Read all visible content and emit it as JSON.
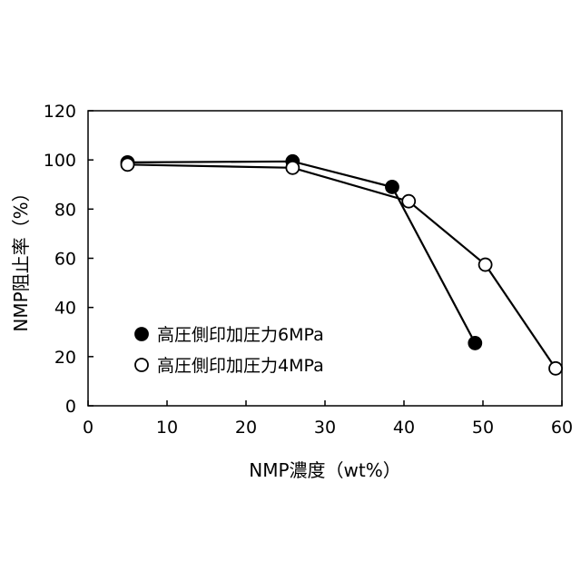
{
  "chart_data": {
    "type": "line",
    "xlabel": "NMP濃度（wt%）",
    "ylabel": "NMP阻止率（%）",
    "xlim": [
      0,
      60
    ],
    "ylim": [
      0,
      120
    ],
    "xticks": [
      0,
      10,
      20,
      30,
      40,
      50,
      60
    ],
    "yticks": [
      0,
      20,
      40,
      60,
      80,
      100,
      120
    ],
    "grid": false,
    "legend_position": "lower-left",
    "series": [
      {
        "name": "高圧側印加圧力6MPa",
        "marker": "filled-circle",
        "color": "#000000",
        "x": [
          5.0,
          25.9,
          38.5,
          49.0
        ],
        "y": [
          99.0,
          99.4,
          89.0,
          25.5
        ]
      },
      {
        "name": "高圧側印加圧力4MPa",
        "marker": "open-circle",
        "color": "#000000",
        "x": [
          5.0,
          25.9,
          40.6,
          50.3,
          59.2
        ],
        "y": [
          98.1,
          96.8,
          83.2,
          57.4,
          15.2
        ]
      }
    ]
  }
}
